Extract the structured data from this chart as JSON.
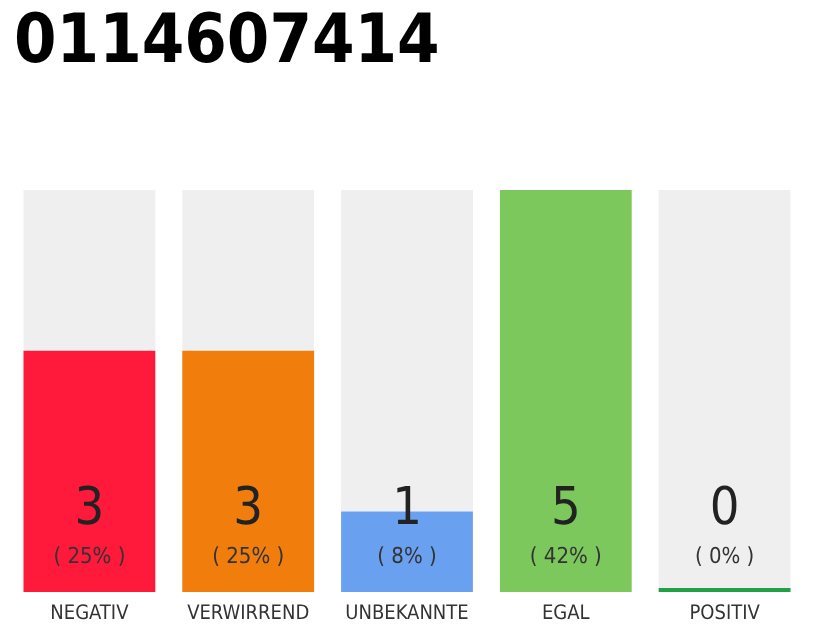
{
  "chart_data": {
    "type": "bar",
    "title": "0114607414",
    "stacked": true,
    "categories": [
      "NEGATIV",
      "VERWIRREND",
      "UNBEKANNTE",
      "EGAL",
      "POSITIV"
    ],
    "series": [
      {
        "colors": [
          "#ff1a3c",
          "#f07d0c",
          "#6aa0f0",
          "#7cc85c",
          "#22a045"
        ],
        "values": [
          3,
          3,
          1,
          5,
          0
        ],
        "value_labels": [
          "3\n( 25% )",
          "3\n( 25% )",
          "1\n( 8% )",
          "5\n( 42% )",
          "0\n( 0% )"
        ]
      },
      {
        "color": "#efefef",
        "values": [
          2,
          2,
          4,
          0,
          5
        ]
      }
    ]
  }
}
